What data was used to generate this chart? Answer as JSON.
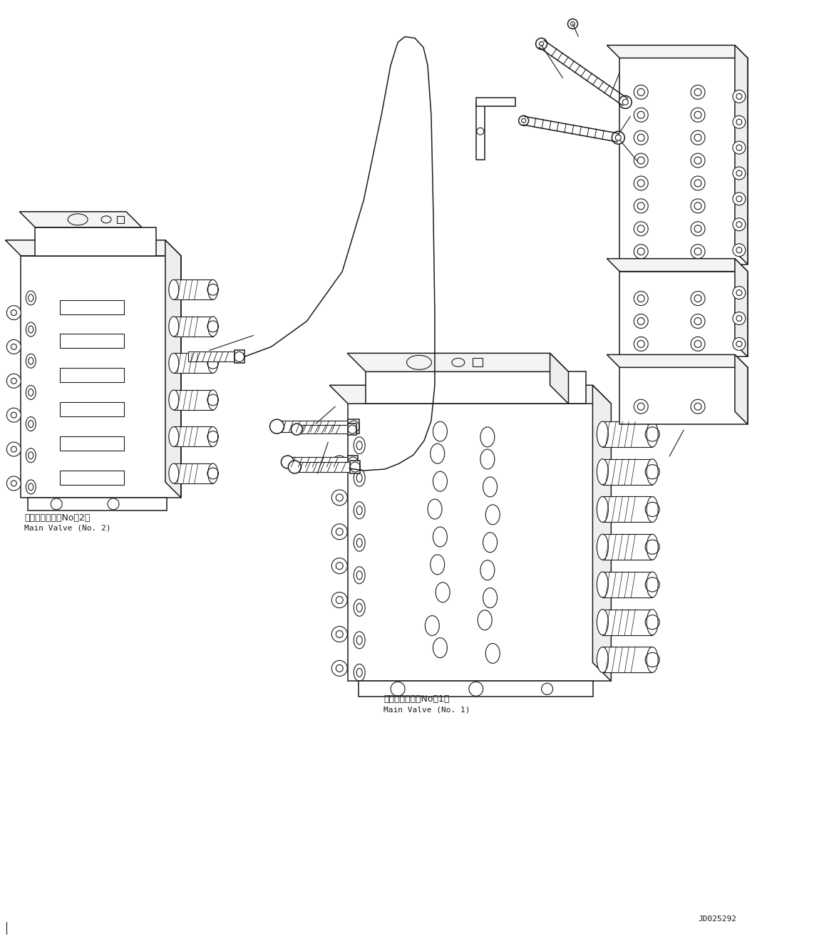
{
  "bg_color": "#ffffff",
  "line_color": "#1a1a1a",
  "figure_width": 11.63,
  "figure_height": 13.17,
  "doc_number": "JD025292",
  "label_valve1_jp": "メインバルブ（No．1）",
  "label_valve1_en": "Main Valve (No. 1)",
  "label_valve2_jp": "メインバルブ（No．2）",
  "label_valve2_en": "Main Valve (No. 2)",
  "font_size_label": 9,
  "font_size_doc": 8
}
